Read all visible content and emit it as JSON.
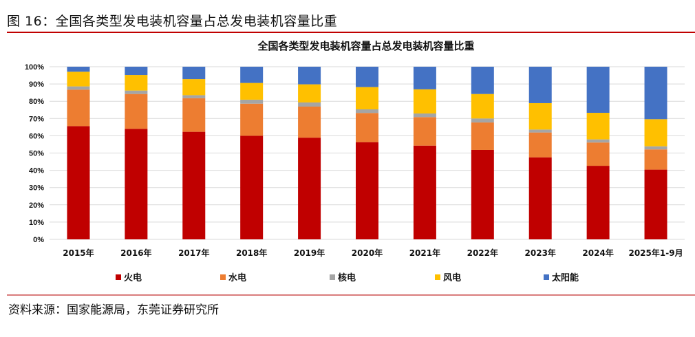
{
  "figure_title": "图 16：全国各类型发电装机容量占总发电装机容量比重",
  "source": "资料来源：国家能源局，东莞证券研究所",
  "chart_data": {
    "type": "bar",
    "stacked": true,
    "title": "全国各类型发电装机容量占总发电装机容量比重",
    "xlabel": "",
    "ylabel": "",
    "ylim": [
      0,
      100
    ],
    "yticks": [
      "0%",
      "10%",
      "20%",
      "30%",
      "40%",
      "50%",
      "60%",
      "70%",
      "80%",
      "90%",
      "100%"
    ],
    "grid": true,
    "legend_position": "bottom",
    "categories": [
      "2015年",
      "2016年",
      "2017年",
      "2018年",
      "2019年",
      "2020年",
      "2021年",
      "2022年",
      "2023年",
      "2024年",
      "2025年1-9月"
    ],
    "series": [
      {
        "name": "火电",
        "color": "#c00000",
        "values": [
          65.6,
          64.0,
          62.3,
          60.0,
          58.9,
          56.3,
          54.3,
          51.8,
          47.5,
          42.6,
          40.4
        ]
      },
      {
        "name": "水电",
        "color": "#ed7d31",
        "values": [
          21.1,
          20.2,
          19.5,
          18.6,
          18.0,
          16.9,
          16.5,
          15.9,
          14.4,
          13.5,
          11.7
        ]
      },
      {
        "name": "核电",
        "color": "#a5a5a5",
        "values": [
          1.9,
          2.0,
          1.7,
          2.3,
          2.4,
          2.1,
          2.1,
          2.3,
          1.7,
          1.8,
          1.8
        ]
      },
      {
        "name": "风电",
        "color": "#ffc000",
        "values": [
          8.5,
          9.0,
          9.3,
          9.7,
          10.5,
          12.9,
          14.0,
          14.2,
          15.3,
          15.4,
          15.7
        ]
      },
      {
        "name": "太阳能",
        "color": "#4472c4",
        "values": [
          2.9,
          4.8,
          7.2,
          9.4,
          10.2,
          11.8,
          13.1,
          15.8,
          21.1,
          26.7,
          30.4
        ]
      }
    ]
  }
}
